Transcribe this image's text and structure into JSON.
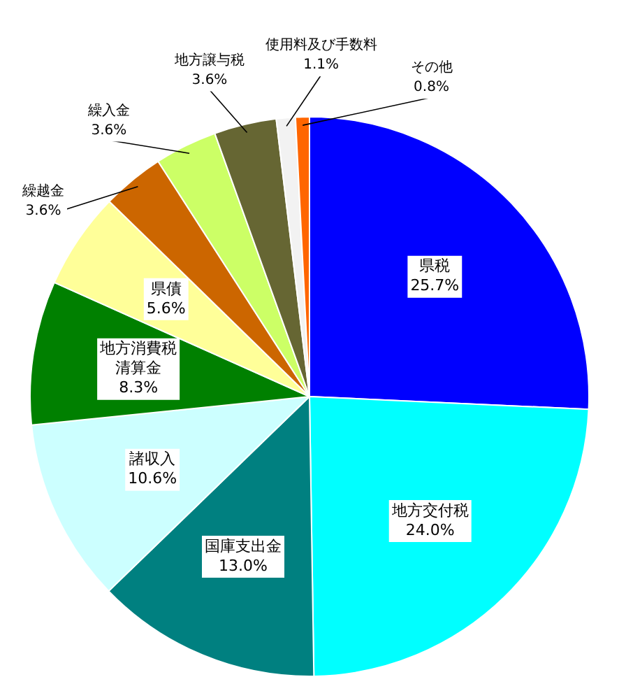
{
  "chart_data": {
    "type": "pie",
    "categories": [
      "県税",
      "地方交付税",
      "国庫支出金",
      "諸収入",
      "地方消費税清算金",
      "県債",
      "繰越金",
      "繰入金",
      "地方譲与税",
      "使用料及び手数料",
      "その他"
    ],
    "values": [
      25.7,
      24.0,
      13.0,
      10.6,
      8.3,
      5.6,
      3.6,
      3.6,
      3.6,
      1.1,
      0.8
    ],
    "colors": [
      "#0000ff",
      "#00ffff",
      "#008080",
      "#ccffff",
      "#008000",
      "#ffff99",
      "#cc6600",
      "#ccff66",
      "#666633",
      "#f2f2f2",
      "#ff6600"
    ],
    "value_labels": [
      "25.7%",
      "24.0%",
      "13.0%",
      "10.6%",
      "8.3%",
      "5.6%",
      "3.6%",
      "3.6%",
      "3.6%",
      "1.1%",
      "0.8%"
    ],
    "legend": false
  }
}
